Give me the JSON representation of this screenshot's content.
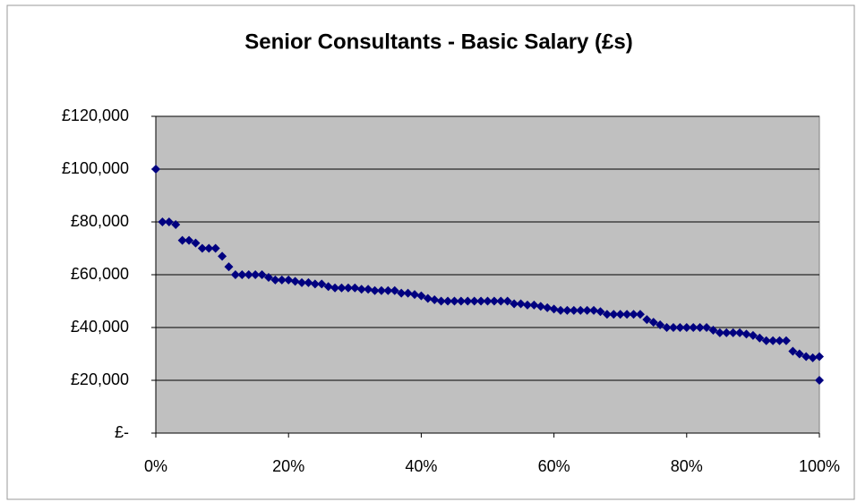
{
  "chart_data": {
    "type": "scatter",
    "title": "Senior Consultants - Basic Salary (£s)",
    "series": [
      {
        "color": "#000080",
        "x": [
          0,
          1,
          2,
          3,
          4,
          5,
          6,
          7,
          8,
          9,
          10,
          11,
          12,
          13,
          14,
          15,
          16,
          17,
          18,
          19,
          20,
          21,
          22,
          23,
          24,
          25,
          26,
          27,
          28,
          29,
          30,
          31,
          32,
          33,
          34,
          35,
          36,
          37,
          38,
          39,
          40,
          41,
          42,
          43,
          44,
          45,
          46,
          47,
          48,
          49,
          50,
          51,
          52,
          53,
          54,
          55,
          56,
          57,
          58,
          59,
          60,
          61,
          62,
          63,
          64,
          65,
          66,
          67,
          68,
          69,
          70,
          71,
          72,
          73,
          74,
          75,
          76,
          77,
          78,
          79,
          80,
          81,
          82,
          83,
          84,
          85,
          86,
          87,
          88,
          89,
          90,
          91,
          92,
          93,
          94,
          95,
          96,
          97,
          98,
          99,
          100,
          100
        ],
        "values": [
          100000,
          80000,
          80000,
          79000,
          73000,
          73000,
          72000,
          70000,
          70000,
          70000,
          67000,
          63000,
          60000,
          60000,
          60000,
          60000,
          60000,
          59000,
          58000,
          58000,
          58000,
          57500,
          57000,
          57000,
          56500,
          56500,
          55500,
          55000,
          55000,
          55000,
          55000,
          54500,
          54500,
          54000,
          54000,
          54000,
          54000,
          53000,
          53000,
          52500,
          52000,
          51000,
          50500,
          50000,
          50000,
          50000,
          50000,
          50000,
          50000,
          50000,
          50000,
          50000,
          50000,
          50000,
          49000,
          49000,
          48500,
          48500,
          48000,
          47500,
          47000,
          46500,
          46500,
          46500,
          46500,
          46500,
          46500,
          46000,
          45000,
          45000,
          45000,
          45000,
          45000,
          45000,
          43000,
          42000,
          41000,
          40000,
          40000,
          40000,
          40000,
          40000,
          40000,
          40000,
          39000,
          38000,
          38000,
          38000,
          38000,
          37500,
          37000,
          36000,
          35000,
          35000,
          35000,
          35000,
          31000,
          30000,
          29000,
          28500,
          29000,
          20000
        ]
      }
    ],
    "xlim": [
      0,
      100
    ],
    "xticks": [
      {
        "value": 0,
        "label": "0%"
      },
      {
        "value": 20,
        "label": "20%"
      },
      {
        "value": 40,
        "label": "40%"
      },
      {
        "value": 60,
        "label": "60%"
      },
      {
        "value": 80,
        "label": "80%"
      },
      {
        "value": 100,
        "label": "100%"
      }
    ],
    "ylim": [
      0,
      120000
    ],
    "yticks": [
      {
        "value": 0,
        "label": "£-"
      },
      {
        "value": 20000,
        "label": "£20,000"
      },
      {
        "value": 40000,
        "label": "£40,000"
      },
      {
        "value": 60000,
        "label": "£60,000"
      },
      {
        "value": 80000,
        "label": "£80,000"
      },
      {
        "value": 100000,
        "label": "£100,000"
      },
      {
        "value": 120000,
        "label": "£120,000"
      }
    ],
    "grid": true,
    "plot_background": "#c0c0c0"
  }
}
